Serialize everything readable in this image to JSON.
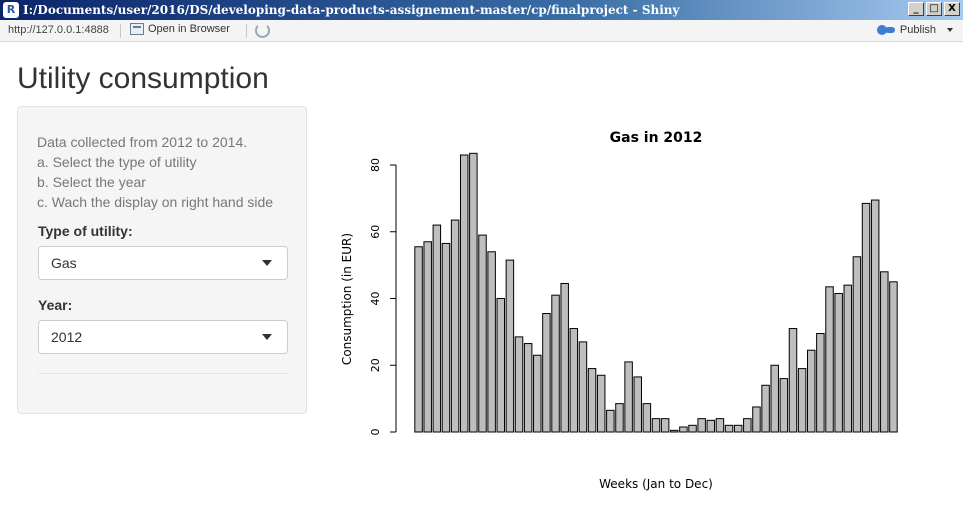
{
  "window": {
    "title": "I:/Documents/user/2016/DS/developing-data-products-assignement-master/cp/finalproject - Shiny",
    "app_icon": "R",
    "buttons": [
      "_",
      "□",
      "X"
    ]
  },
  "toolbar": {
    "url": "http://127.0.0.1:4888",
    "open_browser_label": "Open in Browser",
    "publish_label": "Publish"
  },
  "page": {
    "title": "Utility consumption"
  },
  "sidebar": {
    "intro": [
      "Data collected from 2012 to 2014.",
      "a. Select the type of utility",
      "b. Select the year",
      "c. Wach the display on right hand side"
    ],
    "utility_label": "Type of utility:",
    "utility_value": "Gas",
    "year_label": "Year:",
    "year_value": "2012"
  },
  "chart_data": {
    "type": "bar",
    "title": "Gas in 2012",
    "xlabel": "Weeks (Jan to Dec)",
    "ylabel": "Consumption (in EUR)",
    "ylim": [
      0,
      85
    ],
    "yticks": [
      0,
      20,
      40,
      60,
      80
    ],
    "grid": false,
    "bar_color": "#bebebe",
    "values": [
      55.5,
      57,
      62,
      56.5,
      63.5,
      83,
      83.5,
      59,
      54,
      40,
      51.5,
      28.5,
      26.5,
      23,
      35.5,
      41,
      44.5,
      31,
      27,
      19,
      17,
      6.5,
      8.5,
      21,
      16.5,
      8.5,
      4,
      4,
      0.5,
      1.5,
      2,
      4,
      3.5,
      4,
      2,
      2,
      4,
      7.5,
      14,
      20,
      16,
      31,
      19,
      24.5,
      29.5,
      43.5,
      41.5,
      44,
      52.5,
      68.5,
      69.5,
      48,
      45
    ]
  }
}
